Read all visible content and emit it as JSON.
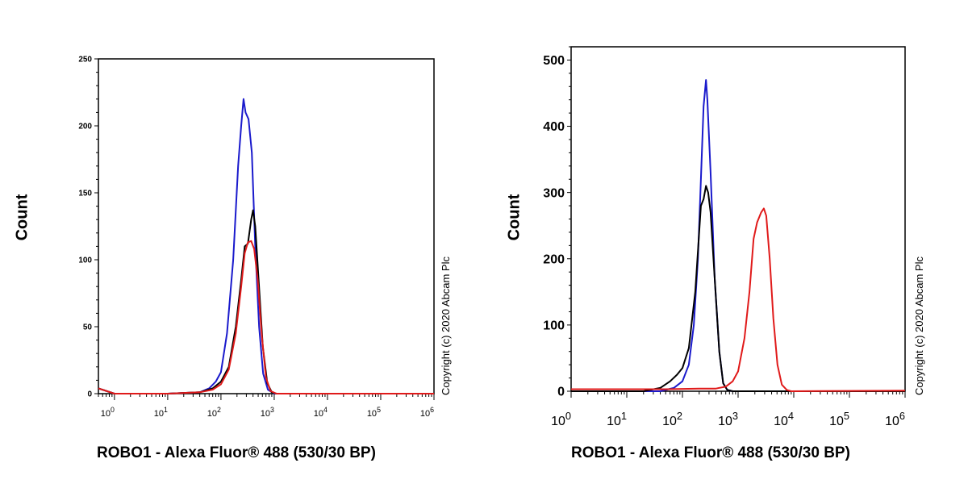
{
  "chart_data": [
    {
      "type": "line",
      "title": "",
      "xlabel": "ROBO1 - Alexa Fluor® 488 (530/30 BP)",
      "ylabel": "Count",
      "xscale": "log",
      "xlim": [
        0.5,
        1000000
      ],
      "ylim": [
        0,
        250
      ],
      "yticks": [
        0,
        50,
        100,
        150,
        200,
        250
      ],
      "xticks": [
        {
          "base": "10",
          "exp": "0",
          "value": 1
        },
        {
          "base": "10",
          "exp": "1",
          "value": 10
        },
        {
          "base": "10",
          "exp": "2",
          "value": 100
        },
        {
          "base": "10",
          "exp": "3",
          "value": 1000
        },
        {
          "base": "10",
          "exp": "4",
          "value": 10000
        },
        {
          "base": "10",
          "exp": "5",
          "value": 100000
        },
        {
          "base": "10",
          "exp": "6",
          "value": 1000000
        }
      ],
      "grid": false,
      "copyright": "Copyright (c) 2020 Abcam Plc",
      "series": [
        {
          "color": "#1a1acc",
          "points": [
            [
              0.5,
              4
            ],
            [
              1,
              0
            ],
            [
              10,
              0
            ],
            [
              40,
              1
            ],
            [
              60,
              4
            ],
            [
              80,
              9
            ],
            [
              100,
              16
            ],
            [
              130,
              45
            ],
            [
              170,
              100
            ],
            [
              210,
              170
            ],
            [
              240,
              200
            ],
            [
              265,
              220
            ],
            [
              290,
              210
            ],
            [
              330,
              205
            ],
            [
              380,
              180
            ],
            [
              440,
              110
            ],
            [
              520,
              50
            ],
            [
              620,
              15
            ],
            [
              760,
              3
            ],
            [
              1000,
              0
            ],
            [
              1000000,
              0
            ]
          ]
        },
        {
          "color": "#000000",
          "points": [
            [
              0.5,
              4
            ],
            [
              1,
              0
            ],
            [
              10,
              0
            ],
            [
              40,
              1
            ],
            [
              70,
              4
            ],
            [
              100,
              9
            ],
            [
              140,
              20
            ],
            [
              190,
              50
            ],
            [
              240,
              85
            ],
            [
              280,
              110
            ],
            [
              320,
              112
            ],
            [
              370,
              130
            ],
            [
              400,
              137
            ],
            [
              440,
              125
            ],
            [
              510,
              85
            ],
            [
              610,
              35
            ],
            [
              740,
              8
            ],
            [
              900,
              1
            ],
            [
              1100,
              0
            ],
            [
              1000000,
              0
            ]
          ]
        },
        {
          "color": "#e01a1a",
          "points": [
            [
              0.5,
              4
            ],
            [
              1,
              0
            ],
            [
              10,
              0
            ],
            [
              40,
              1
            ],
            [
              70,
              3
            ],
            [
              100,
              7
            ],
            [
              140,
              18
            ],
            [
              190,
              45
            ],
            [
              240,
              80
            ],
            [
              280,
              105
            ],
            [
              320,
              113
            ],
            [
              370,
              114
            ],
            [
              420,
              108
            ],
            [
              490,
              85
            ],
            [
              580,
              45
            ],
            [
              700,
              12
            ],
            [
              850,
              2
            ],
            [
              1100,
              0
            ],
            [
              1000000,
              0
            ]
          ]
        }
      ]
    },
    {
      "type": "line",
      "title": "",
      "xlabel": "ROBO1 - Alexa Fluor® 488 (530/30 BP)",
      "ylabel": "Count",
      "xscale": "log",
      "xlim": [
        1,
        1000000
      ],
      "ylim": [
        0,
        520
      ],
      "yticks": [
        0,
        100,
        200,
        300,
        400,
        500
      ],
      "xticks": [
        {
          "base": "10",
          "exp": "0",
          "value": 1
        },
        {
          "base": "10",
          "exp": "1",
          "value": 10
        },
        {
          "base": "10",
          "exp": "2",
          "value": 100
        },
        {
          "base": "10",
          "exp": "3",
          "value": 1000
        },
        {
          "base": "10",
          "exp": "4",
          "value": 10000
        },
        {
          "base": "10",
          "exp": "5",
          "value": 100000
        },
        {
          "base": "10",
          "exp": "6",
          "value": 1000000
        }
      ],
      "grid": false,
      "copyright": "Copyright (c) 2020 Abcam Plc",
      "series": [
        {
          "color": "#1a1acc",
          "points": [
            [
              1,
              0
            ],
            [
              40,
              0
            ],
            [
              70,
              5
            ],
            [
              100,
              15
            ],
            [
              130,
              40
            ],
            [
              160,
              100
            ],
            [
              190,
              200
            ],
            [
              215,
              320
            ],
            [
              240,
              430
            ],
            [
              265,
              470
            ],
            [
              280,
              440
            ],
            [
              320,
              330
            ],
            [
              380,
              170
            ],
            [
              460,
              60
            ],
            [
              540,
              12
            ],
            [
              640,
              2
            ],
            [
              800,
              0
            ],
            [
              1000000,
              0
            ]
          ]
        },
        {
          "color": "#000000",
          "points": [
            [
              1,
              0
            ],
            [
              20,
              0
            ],
            [
              40,
              5
            ],
            [
              60,
              15
            ],
            [
              80,
              25
            ],
            [
              100,
              35
            ],
            [
              130,
              65
            ],
            [
              170,
              150
            ],
            [
              215,
              280
            ],
            [
              240,
              290
            ],
            [
              265,
              310
            ],
            [
              290,
              300
            ],
            [
              320,
              270
            ],
            [
              380,
              170
            ],
            [
              460,
              60
            ],
            [
              540,
              12
            ],
            [
              640,
              2
            ],
            [
              800,
              0
            ],
            [
              1000000,
              0
            ]
          ]
        },
        {
          "color": "#e01a1a",
          "points": [
            [
              1,
              3
            ],
            [
              50,
              3
            ],
            [
              200,
              4
            ],
            [
              400,
              4
            ],
            [
              600,
              7
            ],
            [
              800,
              15
            ],
            [
              1000,
              30
            ],
            [
              1300,
              80
            ],
            [
              1600,
              150
            ],
            [
              1900,
              230
            ],
            [
              2200,
              255
            ],
            [
              2600,
              270
            ],
            [
              2900,
              276
            ],
            [
              3200,
              265
            ],
            [
              3700,
              200
            ],
            [
              4300,
              110
            ],
            [
              5100,
              40
            ],
            [
              6100,
              10
            ],
            [
              7500,
              2
            ],
            [
              9000,
              0
            ],
            [
              1000000,
              1
            ]
          ]
        }
      ]
    }
  ]
}
